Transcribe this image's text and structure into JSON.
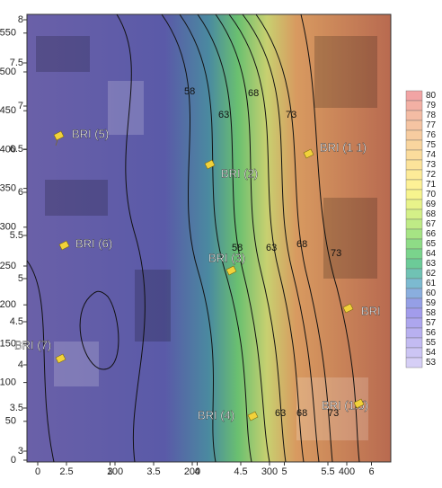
{
  "axes": {
    "bottom_outer": [
      0,
      100,
      200,
      300,
      400
    ],
    "bottom_inner": [
      2.5,
      3,
      3.5,
      4,
      4.5,
      5,
      5.5,
      6
    ],
    "left_outer": [
      0,
      50,
      100,
      150,
      200,
      250,
      300,
      350,
      400,
      450,
      500,
      550
    ],
    "left_inner": [
      3,
      3.5,
      4,
      4.5,
      5,
      5.5,
      6,
      6.5,
      7,
      7.5,
      8
    ]
  },
  "colorbar": {
    "levels": [
      80,
      79,
      78,
      77,
      76,
      75,
      74,
      73,
      72,
      71,
      70,
      69,
      68,
      67,
      66,
      65,
      64,
      63,
      62,
      61,
      60,
      59,
      58,
      57,
      56,
      55,
      54,
      53
    ],
    "colors": [
      "#f2a4a4",
      "#f3b0a4",
      "#f4bca4",
      "#f5c4a2",
      "#f7cca0",
      "#f9d59e",
      "#fbdc9c",
      "#fce39a",
      "#fdeb98",
      "#fdf196",
      "#f7f48e",
      "#e8f38a",
      "#d4f088",
      "#bfeb86",
      "#a6e484",
      "#8edc86",
      "#7ad48c",
      "#6ccb98",
      "#70c2b4",
      "#7cbad0",
      "#8aaede",
      "#959fe6",
      "#a29cec",
      "#ada6ee",
      "#b8b0f0",
      "#c3bbf2",
      "#ccc5f4",
      "#d6cff6"
    ]
  },
  "contour_labels": [
    "58",
    "63",
    "68",
    "73",
    "58",
    "63",
    "68",
    "73",
    "63",
    "68",
    "73"
  ],
  "markers": [
    "BRI (5)",
    "BRI (2)",
    "BRI (1 1)",
    "BRI (6)",
    "BRI (3)",
    "BRI",
    "BRI (7)",
    "BRI (4)",
    "BRI (1.5)"
  ]
}
